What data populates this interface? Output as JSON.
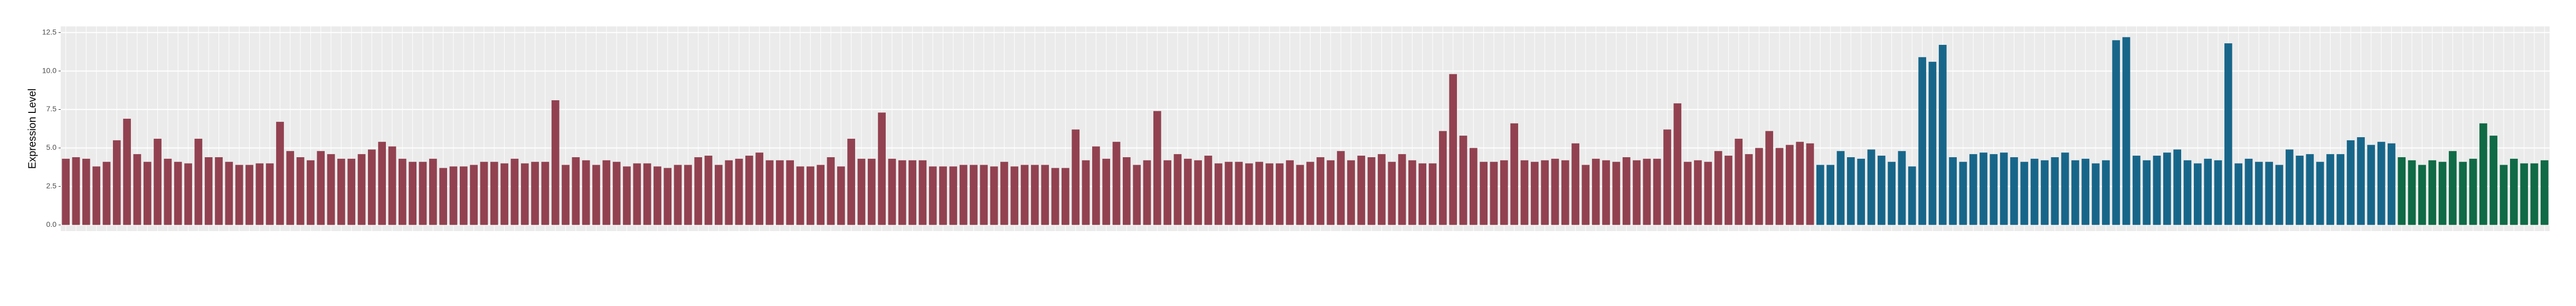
{
  "chart_data": {
    "type": "bar",
    "y_label": "Expression Level",
    "ylim": [
      -0.4,
      12.9
    ],
    "yticks": [
      {
        "value": 0,
        "label": "0.0"
      },
      {
        "value": 2.5,
        "label": "2.5"
      },
      {
        "value": 5,
        "label": "5.0"
      },
      {
        "value": 7.5,
        "label": "7.5"
      },
      {
        "value": 10,
        "label": "10.0"
      },
      {
        "value": 12.5,
        "label": "12.5"
      }
    ],
    "grid": true,
    "series": [
      {
        "color": "#924150",
        "values": [
          4.3,
          4.4,
          4.3,
          3.8,
          4.1,
          5.5,
          6.9,
          4.6,
          4.1,
          5.6,
          4.3,
          4.1,
          4.0,
          5.6,
          4.4,
          4.4,
          4.1,
          3.9,
          3.9,
          4.0,
          4.0,
          6.7,
          4.8,
          4.4,
          4.2,
          4.8,
          4.6,
          4.3,
          4.3,
          4.6,
          4.9,
          5.4,
          5.1,
          4.3,
          4.1,
          4.1,
          4.3,
          3.7,
          3.8,
          3.8,
          3.9,
          4.1,
          4.1,
          4.0,
          4.3,
          4.0,
          4.1,
          4.1,
          8.1,
          3.9,
          4.4,
          4.2,
          3.9,
          4.2,
          4.1,
          3.8,
          4.0,
          4.0,
          3.8,
          3.7,
          3.9,
          3.9,
          4.4,
          4.5,
          3.9,
          4.2,
          4.3,
          4.5,
          4.7,
          4.2,
          4.2,
          4.2,
          3.8,
          3.8,
          3.9,
          4.4,
          3.8,
          5.6,
          4.3,
          4.3,
          7.3,
          4.3,
          4.2,
          4.2,
          4.2,
          3.8,
          3.8,
          3.8,
          3.9,
          3.9,
          3.9,
          3.8,
          4.1,
          3.8,
          3.9,
          3.9,
          3.9,
          3.7,
          3.7,
          6.2,
          4.2,
          5.1,
          4.3,
          5.4,
          4.4,
          3.9,
          4.2,
          7.4,
          4.2,
          4.6,
          4.3,
          4.2,
          4.5,
          4.0,
          4.1,
          4.1,
          4.0,
          4.1,
          4.0,
          4.0,
          4.2,
          3.9,
          4.1,
          4.4,
          4.2,
          4.8,
          4.2,
          4.5,
          4.4,
          4.6,
          4.1,
          4.6,
          4.2,
          4.0,
          4.0,
          6.1,
          9.8,
          5.8,
          5.0,
          4.1,
          4.1,
          4.2,
          6.6,
          4.2,
          4.1,
          4.2,
          4.3,
          4.2,
          5.3,
          3.9,
          4.3,
          4.2,
          4.1,
          4.4,
          4.2,
          4.3,
          4.3,
          6.2,
          7.9,
          4.1,
          4.2,
          4.1,
          4.8,
          4.5,
          5.6,
          4.6,
          5.0,
          6.1,
          5.0,
          5.2,
          5.4,
          5.3
        ]
      },
      {
        "color": "#17668a",
        "values": [
          3.9,
          3.9,
          4.8,
          4.4,
          4.3,
          4.9,
          4.5,
          4.1,
          4.8,
          3.8,
          10.9,
          10.6,
          11.7,
          4.4,
          4.1,
          4.6,
          4.7,
          4.6,
          4.7,
          4.4,
          4.1,
          4.3,
          4.2,
          4.4,
          4.7,
          4.2,
          4.3,
          4.0,
          4.2,
          12.0,
          12.2,
          4.5,
          4.2,
          4.5,
          4.7,
          4.9,
          4.2,
          4.0,
          4.3,
          4.2,
          11.8,
          4.0,
          4.3,
          4.1,
          4.1,
          3.9,
          4.9,
          4.5,
          4.6,
          4.1,
          4.6,
          4.6,
          5.5,
          5.7,
          5.2,
          5.4,
          5.3
        ]
      },
      {
        "color": "#0f6a45",
        "values": [
          4.4,
          4.2,
          3.9,
          4.2,
          4.1,
          4.8,
          4.1,
          4.3,
          6.6,
          5.8,
          3.9,
          4.3,
          4.0,
          4.0,
          4.2
        ]
      }
    ]
  }
}
